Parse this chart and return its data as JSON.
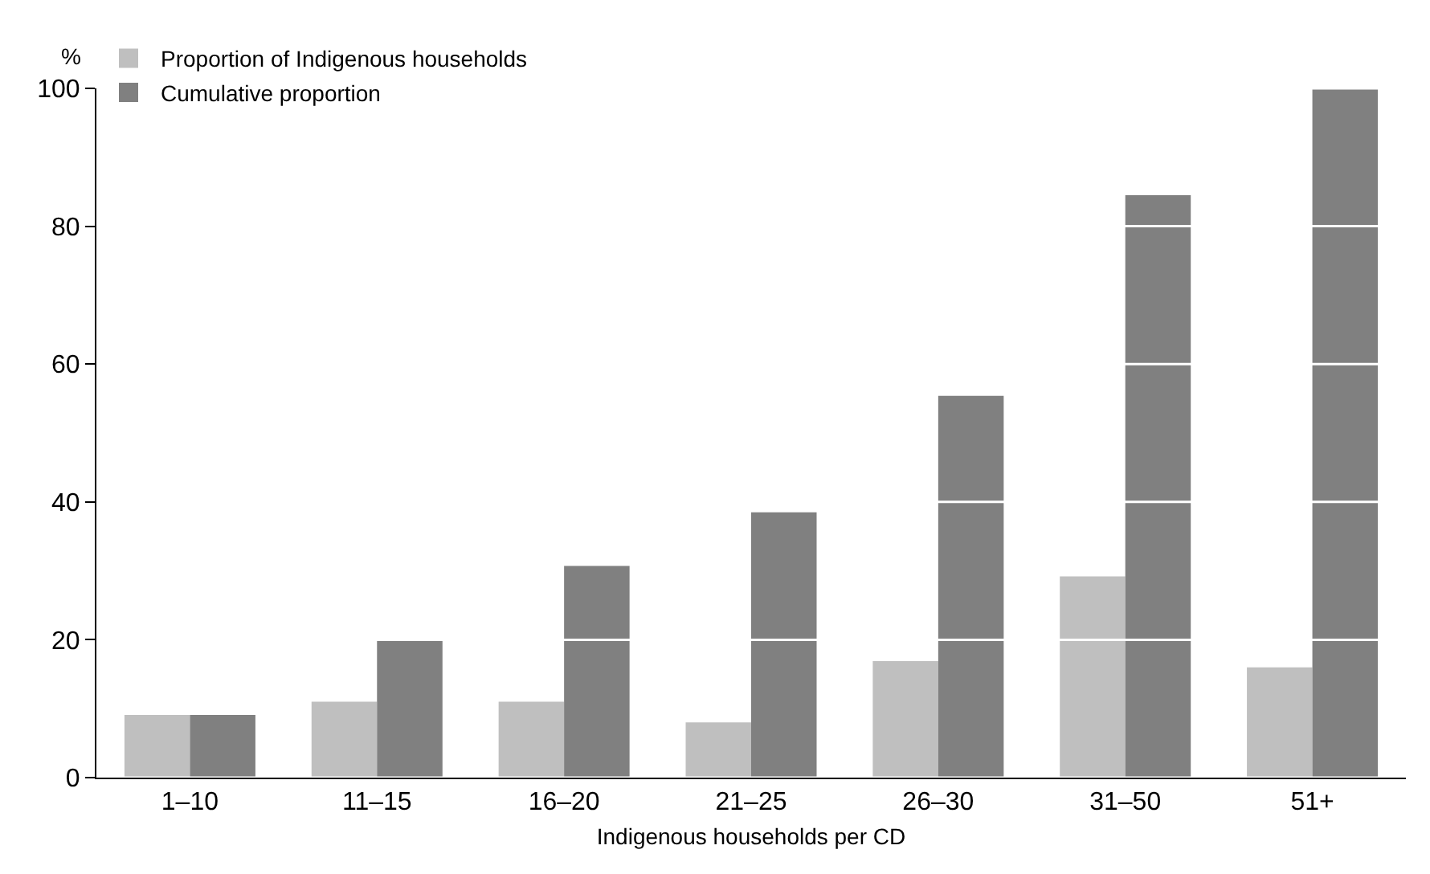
{
  "chart_data": {
    "type": "bar",
    "xlabel": "Indigenous households per CD",
    "ylabel": "%",
    "categories": [
      "1–10",
      "11–15",
      "16–20",
      "21–25",
      "26–30",
      "31–50",
      "51+"
    ],
    "series": [
      {
        "name": "Proportion of Indigenous households",
        "color": "#bfbfbf",
        "values": [
          9.1,
          11.0,
          11.0,
          8.0,
          16.9,
          29.2,
          16.0
        ]
      },
      {
        "name": "Cumulative proportion",
        "color": "#808080",
        "values": [
          9.1,
          19.8,
          30.7,
          38.5,
          55.4,
          84.5,
          100
        ]
      }
    ],
    "ylim": [
      0,
      100
    ],
    "yticks": [
      0,
      20,
      40,
      60,
      80,
      100
    ],
    "grid": "y",
    "legend": "top left"
  }
}
